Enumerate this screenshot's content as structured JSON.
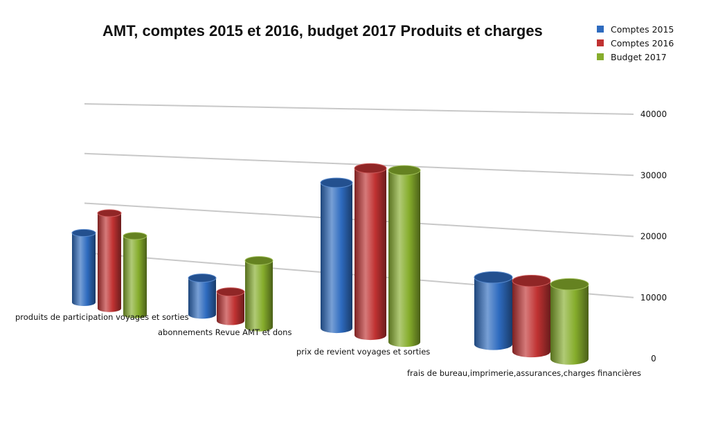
{
  "chart_data": {
    "type": "bar",
    "title": "AMT, comptes 2015 et 2016, budget 2017  Produits et charges",
    "xlabel": "",
    "ylabel": "",
    "ylim": [
      0,
      40000
    ],
    "yticks": [
      0,
      10000,
      20000,
      30000,
      40000
    ],
    "ytick_labels": [
      "0",
      "10000",
      "20000",
      "30000",
      "40000"
    ],
    "grid": true,
    "legend_position": "top-right",
    "categories": [
      "produits de participation voyages et sorties",
      "abonnements Revue AMT et dons",
      "prix de revient voyages et sorties",
      "frais de bureau,imprimerie,assurances,charges financières"
    ],
    "series": [
      {
        "name": "Comptes 2015",
        "color": "#2e6bbf",
        "values": [
          14000,
          7000,
          26500,
          11500
        ]
      },
      {
        "name": "Comptes 2016",
        "color": "#c03232",
        "values": [
          19000,
          5500,
          30000,
          12000
        ]
      },
      {
        "name": "Budget 2017",
        "color": "#86ad2c",
        "values": [
          15500,
          12500,
          30500,
          12500
        ]
      }
    ]
  }
}
